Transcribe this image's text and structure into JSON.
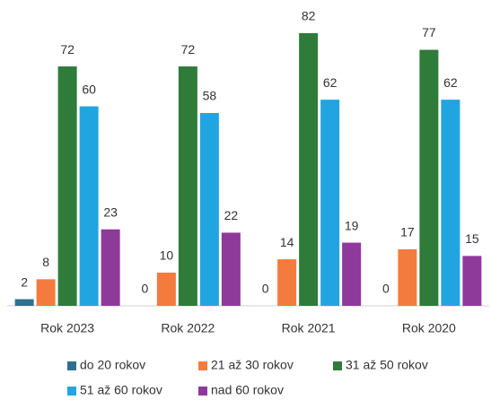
{
  "chart_data": {
    "type": "bar",
    "categories": [
      "Rok 2023",
      "Rok 2022",
      "Rok 2021",
      "Rok 2020"
    ],
    "series": [
      {
        "name": "do 20 rokov",
        "color": "#2f6f8f",
        "values": [
          2,
          0,
          0,
          0
        ]
      },
      {
        "name": "21 až 30 rokov",
        "color": "#f47b3e",
        "values": [
          8,
          10,
          14,
          17
        ]
      },
      {
        "name": "31 až 50 rokov",
        "color": "#2e7b3a",
        "values": [
          72,
          72,
          82,
          77
        ]
      },
      {
        "name": "51 až 60 rokov",
        "color": "#21a5e0",
        "values": [
          60,
          58,
          62,
          62
        ]
      },
      {
        "name": "nad 60 rokov",
        "color": "#8e3a9a",
        "values": [
          23,
          22,
          19,
          15
        ]
      }
    ]
  }
}
